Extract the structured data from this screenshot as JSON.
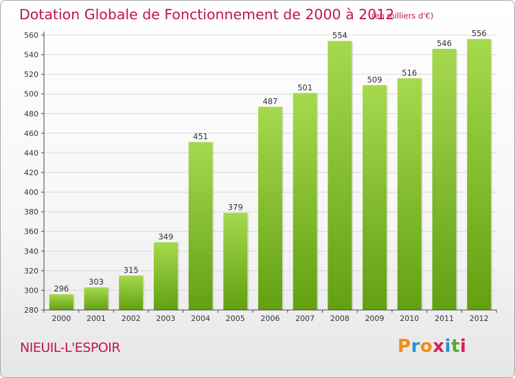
{
  "chart_data": {
    "type": "bar",
    "title": "Dotation Globale de Fonctionnement de 2000 à 2012",
    "subtitle": "(en milliers d'€)",
    "categories": [
      "2000",
      "2001",
      "2002",
      "2003",
      "2004",
      "2005",
      "2006",
      "2007",
      "2008",
      "2009",
      "2010",
      "2011",
      "2012"
    ],
    "values": [
      296,
      303,
      315,
      349,
      451,
      379,
      487,
      501,
      554,
      509,
      516,
      546,
      556
    ],
    "data_labels": [
      "296",
      "303",
      "315",
      "349",
      "451",
      "379",
      "487",
      "501",
      "554",
      "509",
      "516",
      "546",
      "556"
    ],
    "ylim": [
      280,
      560
    ],
    "yticks": [
      280,
      300,
      320,
      340,
      360,
      380,
      400,
      420,
      440,
      460,
      480,
      500,
      520,
      540,
      560
    ],
    "ytick_labels": [
      "280",
      "300",
      "320",
      "340",
      "360",
      "380",
      "400",
      "420",
      "440",
      "460",
      "480",
      "500",
      "520",
      "540",
      "560"
    ],
    "xlabel": "",
    "ylabel": "",
    "grid": true,
    "legend": "none"
  },
  "footer": {
    "commune": "NIEUIL-L'ESPOIR",
    "logo": "Proxiti"
  },
  "colors": {
    "title": "#c0144a",
    "bar_top": "#a6d94e",
    "bar_bottom": "#62a012",
    "grid": "#d8d8d8",
    "axis": "#444444",
    "logo": [
      "#f28c1a",
      "#2a8fd6",
      "#f28c1a",
      "#d21f5a",
      "#2a8fd6",
      "#5aa832",
      "#d21f5a"
    ]
  }
}
